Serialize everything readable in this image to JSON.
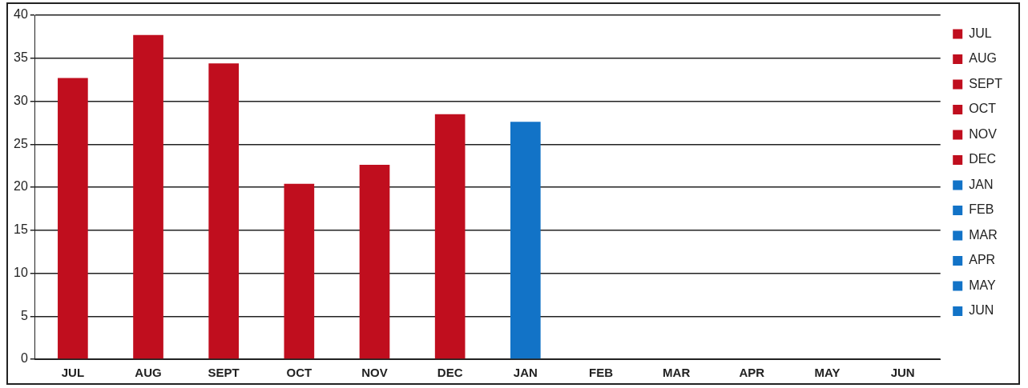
{
  "chart_data": {
    "type": "bar",
    "categories": [
      "JUL",
      "AUG",
      "SEPT",
      "OCT",
      "NOV",
      "DEC",
      "JAN",
      "FEB",
      "MAR",
      "APR",
      "MAY",
      "JUN"
    ],
    "series": [
      {
        "name": "JUL",
        "color": "#c00e1e",
        "values": [
          32.7,
          null,
          null,
          null,
          null,
          null,
          null,
          null,
          null,
          null,
          null,
          null
        ]
      },
      {
        "name": "AUG",
        "color": "#c00e1e",
        "values": [
          null,
          37.7,
          null,
          null,
          null,
          null,
          null,
          null,
          null,
          null,
          null,
          null
        ]
      },
      {
        "name": "SEPT",
        "color": "#c00e1e",
        "values": [
          null,
          null,
          34.4,
          null,
          null,
          null,
          null,
          null,
          null,
          null,
          null,
          null
        ]
      },
      {
        "name": "OCT",
        "color": "#c00e1e",
        "values": [
          null,
          null,
          null,
          20.4,
          null,
          null,
          null,
          null,
          null,
          null,
          null,
          null
        ]
      },
      {
        "name": "NOV",
        "color": "#c00e1e",
        "values": [
          null,
          null,
          null,
          null,
          22.6,
          null,
          null,
          null,
          null,
          null,
          null,
          null
        ]
      },
      {
        "name": "DEC",
        "color": "#c00e1e",
        "values": [
          null,
          null,
          null,
          null,
          null,
          28.5,
          null,
          null,
          null,
          null,
          null,
          null
        ]
      },
      {
        "name": "JAN",
        "color": "#1273c7",
        "values": [
          null,
          null,
          null,
          null,
          null,
          null,
          27.6,
          null,
          null,
          null,
          null,
          null
        ]
      },
      {
        "name": "FEB",
        "color": "#1273c7",
        "values": [
          null,
          null,
          null,
          null,
          null,
          null,
          null,
          null,
          null,
          null,
          null,
          null
        ]
      },
      {
        "name": "MAR",
        "color": "#1273c7",
        "values": [
          null,
          null,
          null,
          null,
          null,
          null,
          null,
          null,
          null,
          null,
          null,
          null
        ]
      },
      {
        "name": "APR",
        "color": "#1273c7",
        "values": [
          null,
          null,
          null,
          null,
          null,
          null,
          null,
          null,
          null,
          null,
          null,
          null
        ]
      },
      {
        "name": "MAY",
        "color": "#1273c7",
        "values": [
          null,
          null,
          null,
          null,
          null,
          null,
          null,
          null,
          null,
          null,
          null,
          null
        ]
      },
      {
        "name": "JUN",
        "color": "#1273c7",
        "values": [
          null,
          null,
          null,
          null,
          null,
          null,
          null,
          null,
          null,
          null,
          null,
          null
        ]
      }
    ],
    "ylim": [
      0,
      40
    ],
    "yticks": [
      0,
      5,
      10,
      15,
      20,
      25,
      30,
      35,
      40
    ],
    "grid": "y",
    "legend": "right"
  }
}
